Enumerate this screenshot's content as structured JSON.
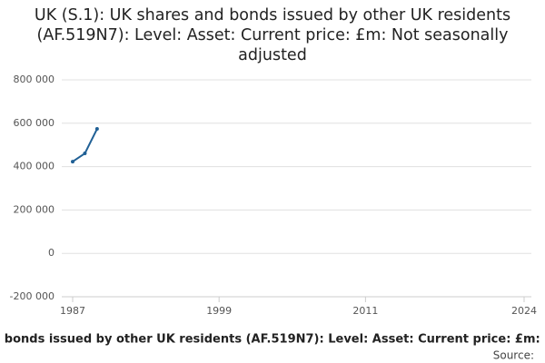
{
  "chart_data": {
    "type": "line",
    "title": "UK (S.1): UK shares and bonds issued by other UK residents (AF.519N7): Level: Asset: Current price: £m: Not seasonally adjusted",
    "x": [
      1987,
      1988,
      1989
    ],
    "series": [
      {
        "name": "UK (S.1): UK shares and bonds issued by other UK residents (AF.519N7): Level: Asset: Current price: £m: Not seasonally adjusted",
        "color": "#206095",
        "values": [
          423000,
          461000,
          574000
        ]
      }
    ],
    "xlim": [
      1987,
      2024
    ],
    "xticks": [
      1987,
      1999,
      2011,
      2024
    ],
    "ylim": [
      -200000,
      800000
    ],
    "yticks": [
      {
        "value": -200000,
        "label": "-200 000"
      },
      {
        "value": 0,
        "label": "0"
      },
      {
        "value": 200000,
        "label": "200 000"
      },
      {
        "value": 400000,
        "label": "400 000"
      },
      {
        "value": 600000,
        "label": "600 000"
      },
      {
        "value": 800000,
        "label": "800 000"
      }
    ],
    "grid": true,
    "source": "Source:"
  }
}
